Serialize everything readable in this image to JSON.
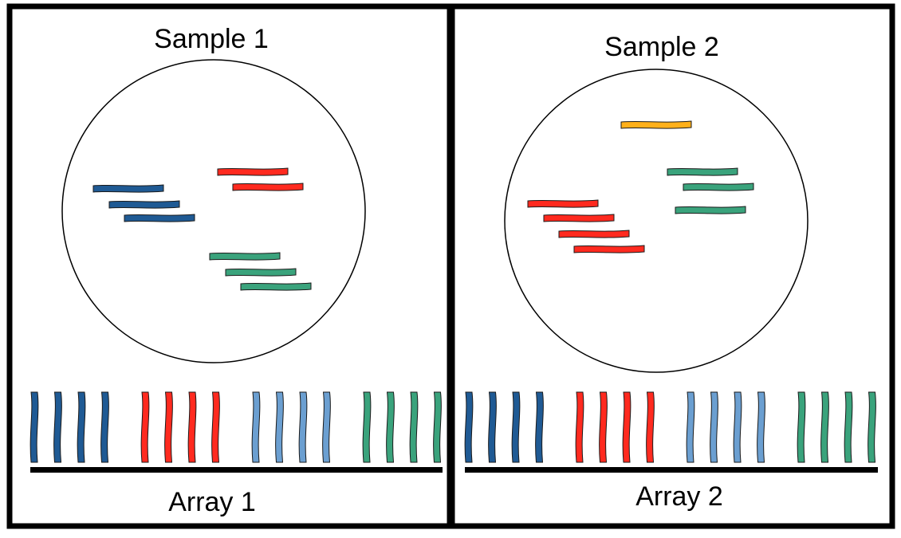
{
  "colors": {
    "dark_blue": "#1f5a94",
    "red": "#ff2a1f",
    "light_blue": "#6b9fd1",
    "green": "#3aa37c",
    "orange": "#ffb01a",
    "outline": "#1a1a1a",
    "frame": "#000000"
  },
  "panels": [
    {
      "title": "Sample 1",
      "array_label": "Array 1",
      "sample_fragments": [
        {
          "color": "dark_blue",
          "count": 3
        },
        {
          "color": "red",
          "count": 2
        },
        {
          "color": "green",
          "count": 3
        }
      ],
      "array_probes": [
        {
          "color": "dark_blue",
          "count": 4
        },
        {
          "color": "red",
          "count": 4
        },
        {
          "color": "light_blue",
          "count": 4
        },
        {
          "color": "green",
          "count": 4
        }
      ]
    },
    {
      "title": "Sample 2",
      "array_label": "Array 2",
      "sample_fragments": [
        {
          "color": "orange",
          "count": 1
        },
        {
          "color": "green",
          "count": 3
        },
        {
          "color": "red",
          "count": 4
        }
      ],
      "array_probes": [
        {
          "color": "dark_blue",
          "count": 4
        },
        {
          "color": "red",
          "count": 4
        },
        {
          "color": "light_blue",
          "count": 4
        },
        {
          "color": "green",
          "count": 4
        }
      ]
    }
  ]
}
